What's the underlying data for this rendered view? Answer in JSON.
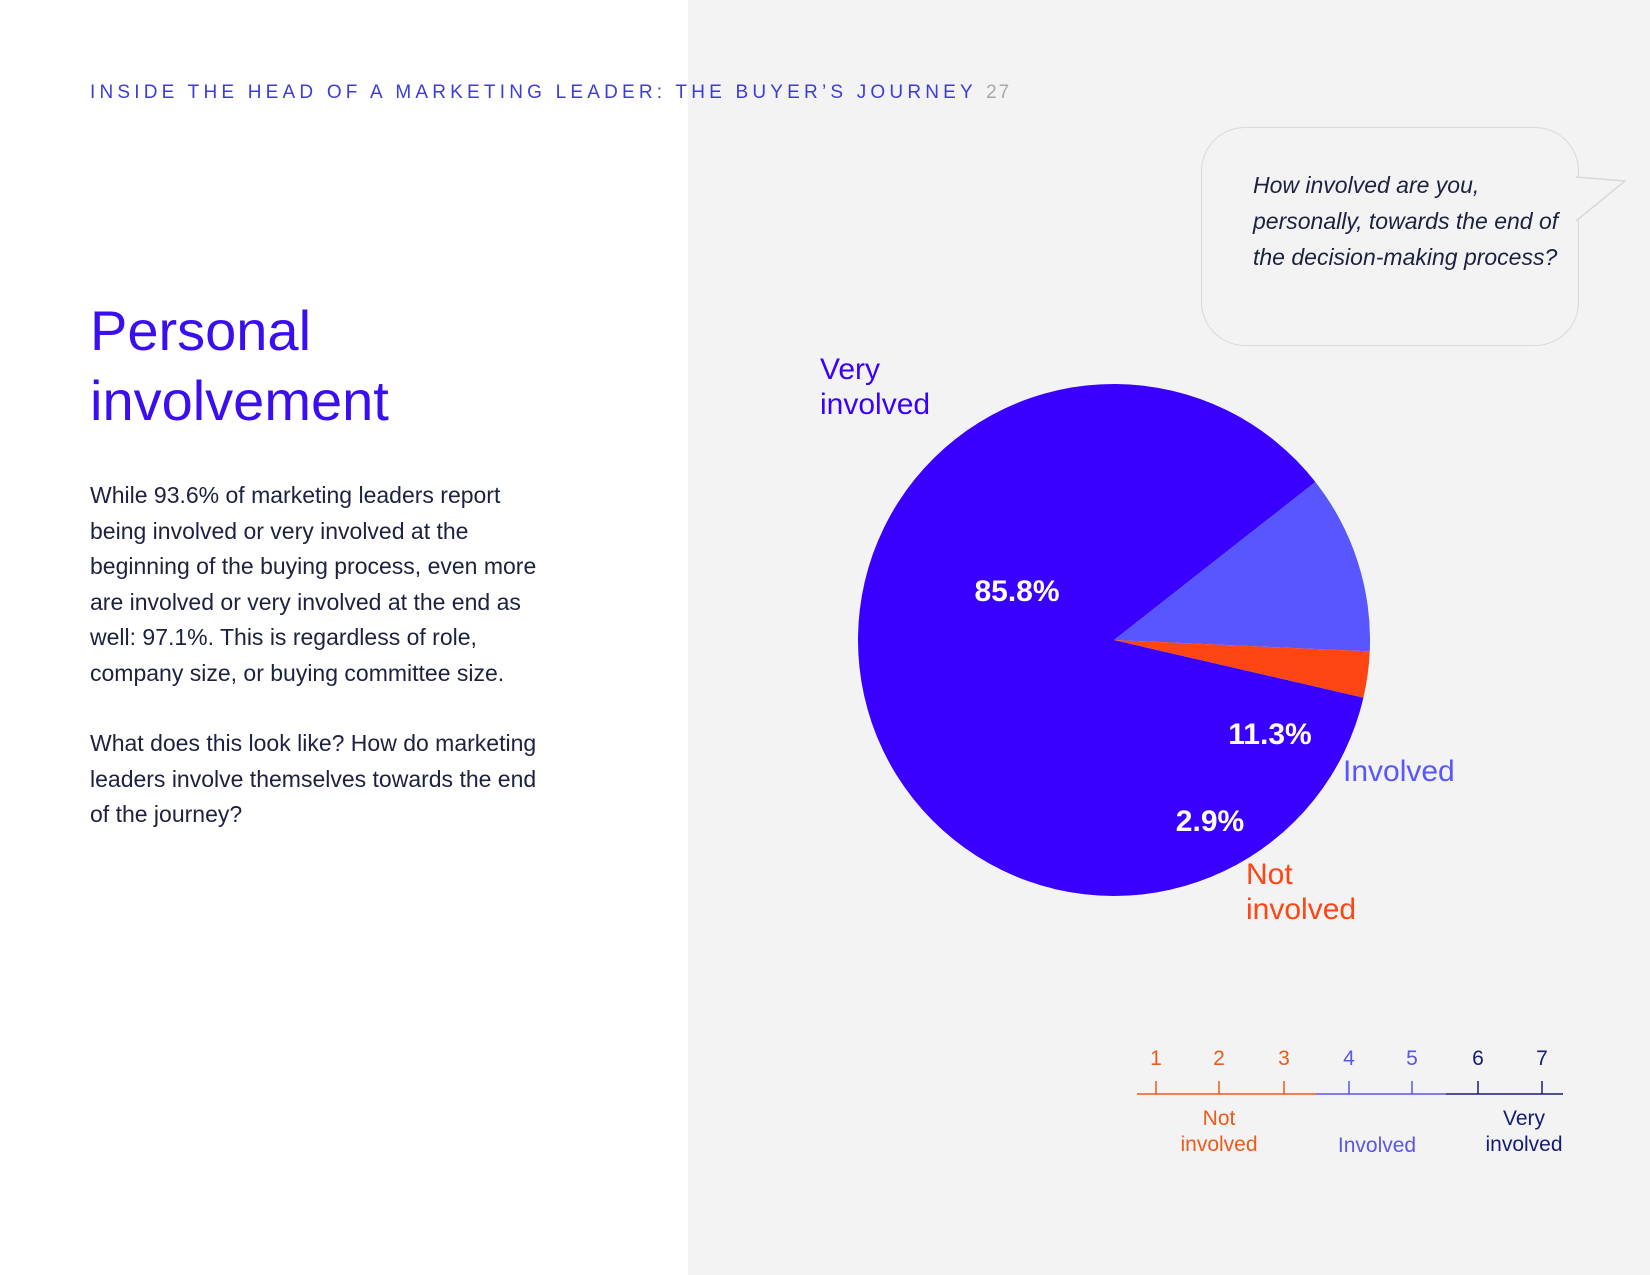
{
  "header": {
    "title": "INSIDE THE HEAD OF A MARKETING LEADER: THE BUYER’S JOURNEY",
    "page_number": "27"
  },
  "title": {
    "line1": "Personal",
    "line2": "involvement"
  },
  "body": {
    "paragraph1": "While 93.6% of marketing leaders report being involved or very involved at the beginning of the buying process, even more are involved or very involved at the end as well: 97.1%. This is regardless of role, company size, or buying committee size.",
    "paragraph2": "What does this look like? How do marketing leaders involve themselves towards the end of the journey?"
  },
  "question": {
    "text": "How involved are you, personally, towards the end of the decision-making process?"
  },
  "chart_data": {
    "type": "pie",
    "title": "How involved are you, personally, towards the end of the decision-making process?",
    "slices": [
      {
        "label": "Very involved",
        "label_lines": [
          "Very",
          "involved"
        ],
        "value": 85.8,
        "value_label": "85.8%",
        "color": "#3a00ff"
      },
      {
        "label": "Involved",
        "label_lines": [
          "Involved"
        ],
        "value": 11.3,
        "value_label": "11.3%",
        "color": "#5856ff"
      },
      {
        "label": "Not involved",
        "label_lines": [
          "Not",
          "involved"
        ],
        "value": 2.9,
        "value_label": "2.9%",
        "color": "#ff4513"
      }
    ],
    "start_angle_deg": 13,
    "direction": "clockwise"
  },
  "scale": {
    "points": [
      {
        "label": "1",
        "color": "#ec5a1c"
      },
      {
        "label": "2",
        "color": "#ec5a1c"
      },
      {
        "label": "3",
        "color": "#ec5a1c"
      },
      {
        "label": "4",
        "color": "#5a56e6"
      },
      {
        "label": "5",
        "color": "#5a56e6"
      },
      {
        "label": "6",
        "color": "#141e70"
      },
      {
        "label": "7",
        "color": "#141e70"
      }
    ],
    "groups": [
      {
        "lines": [
          "Not",
          "involved"
        ],
        "color": "#ec5a1c"
      },
      {
        "lines": [
          "Involved"
        ],
        "color": "#5a56e6"
      },
      {
        "lines": [
          "Very",
          "involved"
        ],
        "color": "#141e70"
      }
    ]
  },
  "colors": {
    "accent": "#3a0ef0",
    "text": "#1c2140",
    "panel": "#f3f3f3"
  }
}
